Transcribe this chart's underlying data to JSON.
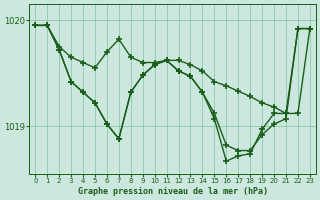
{
  "title": "Graphe pression niveau de la mer (hPa)",
  "bg_color": "#cce8de",
  "line_color": "#1a5e1a",
  "grid_color": "#7abfa0",
  "ylim": [
    1018.55,
    1020.15
  ],
  "yticks": [
    1019.0,
    1020.0
  ],
  "xlim": [
    -0.5,
    23.5
  ],
  "xticks": [
    0,
    1,
    2,
    3,
    4,
    5,
    6,
    7,
    8,
    9,
    10,
    11,
    12,
    13,
    14,
    15,
    16,
    17,
    18,
    19,
    20,
    21,
    22,
    23
  ],
  "series_A": [
    1019.95,
    1019.95,
    1019.75,
    1019.65,
    1019.6,
    1019.55,
    1019.7,
    1019.82,
    1019.65,
    1019.6,
    1019.6,
    1019.62,
    1019.62,
    1019.58,
    1019.52,
    1019.42,
    1019.38,
    1019.33,
    1019.28,
    1019.22,
    1019.18,
    1019.12,
    1019.12,
    1019.92
  ],
  "series_B": [
    1019.95,
    1019.95,
    1019.72,
    1019.42,
    1019.32,
    1019.22,
    1019.02,
    1018.88,
    1019.32,
    1019.48,
    1019.58,
    1019.62,
    1019.52,
    1019.47,
    1019.32,
    1019.12,
    1018.82,
    1018.77,
    1018.77,
    1018.92,
    1019.02,
    1019.07,
    1019.92,
    1019.92
  ],
  "series_C": [
    1019.95,
    1019.95,
    1019.72,
    1019.42,
    1019.32,
    1019.22,
    1019.02,
    1018.88,
    1019.32,
    1019.48,
    1019.58,
    1019.62,
    1019.52,
    1019.47,
    1019.32,
    1019.07,
    1018.67,
    1018.72,
    1018.74,
    1018.97,
    1019.12,
    1019.12,
    1019.92,
    1019.92
  ]
}
